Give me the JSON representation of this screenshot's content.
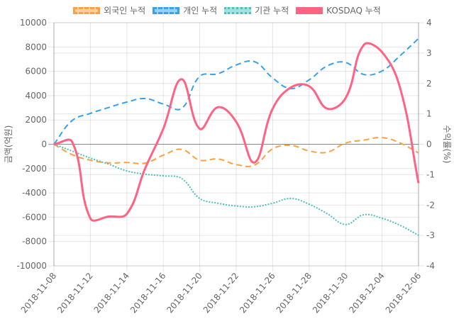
{
  "chart_data": {
    "type": "line",
    "x": [
      "2018-11-08",
      "2018-11-09",
      "2018-11-12",
      "2018-11-13",
      "2018-11-14",
      "2018-11-15",
      "2018-11-16",
      "2018-11-19",
      "2018-11-20",
      "2018-11-21",
      "2018-11-22",
      "2018-11-23",
      "2018-11-26",
      "2018-11-27",
      "2018-11-28",
      "2018-11-29",
      "2018-11-30",
      "2018-12-03",
      "2018-12-04",
      "2018-12-05",
      "2018-12-06"
    ],
    "xtick_labels": [
      "2018-11-08",
      "2018-11-12",
      "2018-11-14",
      "2018-11-16",
      "2018-11-20",
      "2018-11-22",
      "2018-11-26",
      "2018-11-28",
      "2018-11-30",
      "2018-12-04",
      "2018-12-06"
    ],
    "ylabel_left": "금액(억원)",
    "ylabel_right": "수익률(%)",
    "ylim_left": [
      -10000,
      10000
    ],
    "ylim_right": [
      -4,
      4
    ],
    "yticks_left": [
      10000,
      8000,
      6000,
      4000,
      2000,
      0,
      -2000,
      -4000,
      -6000,
      -8000,
      -10000
    ],
    "yticks_right": [
      4,
      3,
      2,
      1,
      0,
      -1,
      -2,
      -3,
      -4
    ],
    "grid": true,
    "legend_position": "top",
    "series": [
      {
        "name": "외국인 누적",
        "axis": "left",
        "color": "#ff9f40",
        "style": "dashed",
        "values": [
          0,
          -850,
          -1310,
          -1530,
          -1500,
          -1550,
          -900,
          -420,
          -1310,
          -1210,
          -1670,
          -1720,
          -380,
          -90,
          -550,
          -650,
          100,
          340,
          550,
          100,
          -710
        ]
      },
      {
        "name": "개인 누적",
        "axis": "left",
        "color": "#36a2eb",
        "style": "dashed",
        "values": [
          0,
          1950,
          2540,
          3020,
          3470,
          3760,
          3310,
          2940,
          5590,
          5800,
          6520,
          6800,
          5450,
          4580,
          5300,
          6450,
          6730,
          5740,
          6030,
          7300,
          8700
        ]
      },
      {
        "name": "기관 누적",
        "axis": "left",
        "color": "#4bc0c0",
        "style": "dotted",
        "values": [
          0,
          -560,
          -1140,
          -1640,
          -2190,
          -2460,
          -2600,
          -2810,
          -4460,
          -4850,
          -5080,
          -5140,
          -4850,
          -4460,
          -4930,
          -5720,
          -6600,
          -5800,
          -6090,
          -6680,
          -7490
        ]
      },
      {
        "name": "KOSDAQ 누적",
        "axis": "right",
        "color": "#ff6384",
        "style": "solid",
        "values": [
          0,
          0.08,
          -2.44,
          -2.38,
          -2.29,
          -0.8,
          0.51,
          2.14,
          0.51,
          1.22,
          0.74,
          -0.6,
          1.17,
          1.87,
          1.91,
          1.17,
          1.52,
          3.27,
          3.03,
          1.83,
          -1.28
        ]
      }
    ]
  }
}
